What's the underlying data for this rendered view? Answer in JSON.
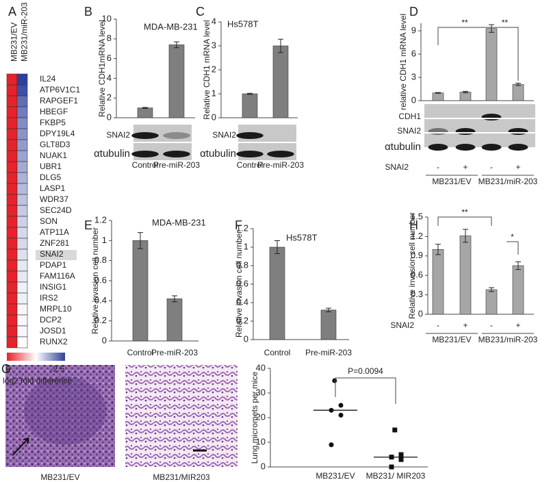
{
  "chart_data": [
    {
      "type": "heatmap",
      "panel": "A",
      "columns": [
        "MB231/EV",
        "MB231/miR-203"
      ],
      "rows": [
        "IL24",
        "ATP6V1C1",
        "RAPGEF1",
        "HBEGF",
        "FKBP5",
        "DPY19L4",
        "GLT8D3",
        "NUAK1",
        "UBR1",
        "DLG5",
        "LASP1",
        "WDR37",
        "SEC24D",
        "SON",
        "ATP11A",
        "ZNF281",
        "SNAI2",
        "PDAP1",
        "FAM116A",
        "INSIG1",
        "IRS2",
        "MRPL10",
        "DCP2",
        "JOSD1",
        "RUNX2"
      ],
      "values": [
        [
          0,
          -2.5
        ],
        [
          0,
          -2.4
        ],
        [
          0,
          -2.2
        ],
        [
          0,
          -2.1
        ],
        [
          0,
          -2
        ],
        [
          0,
          -1.95
        ],
        [
          0,
          -1.9
        ],
        [
          0,
          -1.85
        ],
        [
          0,
          -1.8
        ],
        [
          0,
          -1.75
        ],
        [
          0,
          -1.7
        ],
        [
          0,
          -1.65
        ],
        [
          0,
          -1.6
        ],
        [
          0,
          -1.55
        ],
        [
          0,
          -1.5
        ],
        [
          0,
          -1.5
        ],
        [
          0,
          -1.45
        ],
        [
          0,
          -1.4
        ],
        [
          0,
          -1.4
        ],
        [
          0,
          -1.35
        ],
        [
          0,
          -1.35
        ],
        [
          0,
          -1.3
        ],
        [
          0,
          -1.3
        ],
        [
          0,
          -1.3
        ],
        [
          0,
          -1.25
        ]
      ],
      "clim": [
        0,
        -2.5
      ],
      "colors": [
        "#e8212b",
        "#ffffff",
        "#2e3f9e"
      ],
      "colorbar_label": "log2 fold difference",
      "highlight": "SNAI2"
    },
    {
      "type": "bar",
      "panel": "B",
      "title": "MDA-MB-231",
      "ylabel": "Relative CDH1mRNA level",
      "categories": [
        "Control",
        "Pre-miR-203"
      ],
      "values": [
        1,
        7.4
      ],
      "errors": [
        0.05,
        0.3
      ],
      "ylim": [
        0,
        10
      ],
      "yticks": [
        0,
        2,
        4,
        6,
        8,
        10
      ],
      "color": "#7f7f7f",
      "blot_rows": [
        "SNAI2",
        "αtubulin"
      ]
    },
    {
      "type": "bar",
      "panel": "C",
      "title": "Hs578T",
      "ylabel": "Relative CDH1 mRNA level",
      "categories": [
        "Control",
        "Pre-miR-203"
      ],
      "values": [
        1,
        3
      ],
      "errors": [
        0.02,
        0.28
      ],
      "ylim": [
        0,
        4
      ],
      "yticks": [
        0,
        1,
        2,
        3,
        4
      ],
      "color": "#7f7f7f",
      "blot_rows": [
        "SNAI2",
        "αtubulin"
      ]
    },
    {
      "type": "bar",
      "panel": "D",
      "ylabel": "relative CDH1 mRNA level",
      "categories": [
        "-",
        "+",
        "-",
        "+"
      ],
      "values": [
        1,
        1.1,
        9.3,
        2.1
      ],
      "errors": [
        0.05,
        0.1,
        0.5,
        0.15
      ],
      "ylim": [
        0,
        10
      ],
      "yticks": [
        0,
        3,
        6,
        9
      ],
      "color": "#a6a6a6",
      "blot_rows": [
        "CDH1",
        "SNAI2",
        "αtubulin"
      ],
      "row_label": "SNAI2",
      "groups": [
        "MB231/EV",
        "MB231/miR-203"
      ],
      "annotations": [
        "**",
        "**"
      ]
    },
    {
      "type": "bar",
      "panel": "E",
      "title": "MDA-MB-231",
      "ylabel": "Relative invasion cell number",
      "categories": [
        "Control",
        "Pre-miR-203"
      ],
      "values": [
        1,
        0.42
      ],
      "errors": [
        0.08,
        0.03
      ],
      "ylim": [
        0,
        1.2
      ],
      "yticks": [
        0,
        0.2,
        0.4,
        0.6,
        0.8,
        1,
        1.2
      ],
      "color": "#7f7f7f"
    },
    {
      "type": "bar",
      "panel": "F",
      "title": "Hs578T",
      "ylabel": "Relative invasion cell number",
      "categories": [
        "Control",
        "Pre-miR-203"
      ],
      "values": [
        1,
        0.32
      ],
      "errors": [
        0.07,
        0.02
      ],
      "ylim": [
        0,
        1.2
      ],
      "yticks": [
        0,
        0.2,
        0.4,
        0.6,
        0.8,
        1,
        1.2
      ],
      "color": "#7f7f7f"
    },
    {
      "type": "bar",
      "panel": "H",
      "ylabel": "Relative invasion cell number",
      "categories": [
        "-",
        "+",
        "-",
        "+"
      ],
      "values": [
        1,
        1.21,
        0.38,
        0.75
      ],
      "errors": [
        0.08,
        0.1,
        0.03,
        0.06
      ],
      "ylim": [
        0,
        1.5
      ],
      "yticks": [
        0,
        0.3,
        0.6,
        0.9,
        1.2,
        1.5
      ],
      "color": "#a6a6a6",
      "row_label": "SNAI2",
      "groups": [
        "MB231/EV",
        "MB231/miR-203"
      ],
      "annotations": [
        "**",
        "*"
      ]
    },
    {
      "type": "strip",
      "ylabel": "Lung micromets per mice",
      "categories": [
        "MB231/EV",
        "MB231/ MIR203"
      ],
      "points": [
        [
          35,
          25,
          23,
          21,
          9
        ],
        [
          15,
          5,
          4,
          3,
          0
        ]
      ],
      "means": [
        23,
        4
      ],
      "markers": [
        "circle",
        "square"
      ],
      "annotation": "P=0.0094",
      "ylim": [
        0,
        40
      ],
      "yticks": [
        0,
        10,
        20,
        30,
        40
      ]
    }
  ],
  "images": {
    "panel": "G",
    "labels": [
      "MB231/EV",
      "MB231/MIR203"
    ]
  }
}
